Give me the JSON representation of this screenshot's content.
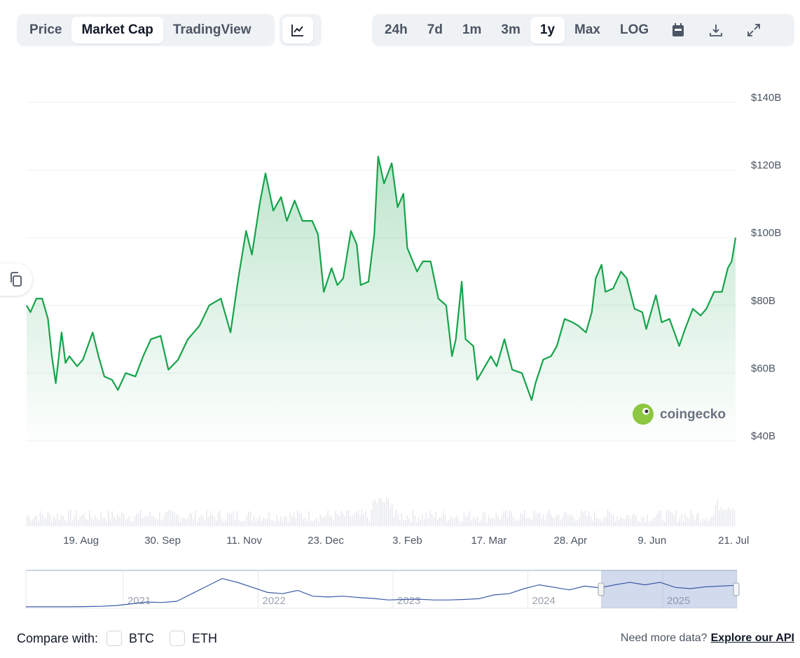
{
  "toolbar": {
    "tabs": [
      {
        "label": "Price",
        "active": false
      },
      {
        "label": "Market Cap",
        "active": true
      },
      {
        "label": "TradingView",
        "active": false
      }
    ],
    "chart_type_icon": "line-chart-icon",
    "ranges": [
      {
        "label": "24h"
      },
      {
        "label": "7d"
      },
      {
        "label": "1m"
      },
      {
        "label": "3m"
      },
      {
        "label": "1y",
        "active": true
      },
      {
        "label": "Max"
      },
      {
        "label": "LOG"
      }
    ],
    "icons": [
      "calendar-icon",
      "download-icon",
      "expand-icon"
    ]
  },
  "watermark": "coingecko",
  "chart_data": {
    "type": "area",
    "title": "",
    "xlabel": "",
    "ylabel": "",
    "line_color": "#16a34a",
    "y_ticks": [
      "$40B",
      "$60B",
      "$80B",
      "$100B",
      "$120B",
      "$140B"
    ],
    "ylim": [
      40,
      140
    ],
    "xlim": [
      "2024-07-22",
      "2025-07-22"
    ],
    "x_ticks": [
      {
        "date": "2024-08-19",
        "label": "19. Aug"
      },
      {
        "date": "2024-09-30",
        "label": "30. Sep"
      },
      {
        "date": "2024-11-11",
        "label": "11. Nov"
      },
      {
        "date": "2024-12-23",
        "label": "23. Dec"
      },
      {
        "date": "2025-02-03",
        "label": "3. Feb"
      },
      {
        "date": "2025-03-17",
        "label": "17. Mar"
      },
      {
        "date": "2025-04-28",
        "label": "28. Apr"
      },
      {
        "date": "2025-06-09",
        "label": "9. Jun"
      },
      {
        "date": "2025-07-21",
        "label": "21. Jul"
      }
    ],
    "grid": true,
    "series": [
      {
        "x": [
          "2024-07-22",
          "2024-07-24",
          "2024-07-27",
          "2024-07-30",
          "2024-08-02",
          "2024-08-04",
          "2024-08-06",
          "2024-08-09",
          "2024-08-11",
          "2024-08-13",
          "2024-08-17",
          "2024-08-20",
          "2024-08-25",
          "2024-08-28",
          "2024-08-31",
          "2024-09-04",
          "2024-09-07",
          "2024-09-11",
          "2024-09-16",
          "2024-09-20",
          "2024-09-24",
          "2024-09-29",
          "2024-10-03",
          "2024-10-08",
          "2024-10-13",
          "2024-10-19",
          "2024-10-24",
          "2024-10-30",
          "2024-11-04",
          "2024-11-08",
          "2024-11-12",
          "2024-11-15",
          "2024-11-19",
          "2024-11-22",
          "2024-11-26",
          "2024-11-30",
          "2024-12-03",
          "2024-12-07",
          "2024-12-11",
          "2024-12-16",
          "2024-12-19",
          "2024-12-22",
          "2024-12-26",
          "2024-12-29",
          "2025-01-01",
          "2025-01-05",
          "2025-01-08",
          "2025-01-10",
          "2025-01-14",
          "2025-01-17",
          "2025-01-19",
          "2025-01-22",
          "2025-01-26",
          "2025-01-29",
          "2025-02-01",
          "2025-02-03",
          "2025-02-08",
          "2025-02-11",
          "2025-02-15",
          "2025-02-19",
          "2025-02-23",
          "2025-02-26",
          "2025-02-28",
          "2025-03-03",
          "2025-03-05",
          "2025-03-09",
          "2025-03-11",
          "2025-03-14",
          "2025-03-18",
          "2025-03-21",
          "2025-03-25",
          "2025-03-29",
          "2025-04-03",
          "2025-04-08",
          "2025-04-10",
          "2025-04-14",
          "2025-04-18",
          "2025-04-21",
          "2025-04-25",
          "2025-04-29",
          "2025-05-02",
          "2025-05-06",
          "2025-05-09",
          "2025-05-11",
          "2025-05-14",
          "2025-05-16",
          "2025-05-20",
          "2025-05-24",
          "2025-05-27",
          "2025-05-31",
          "2025-06-04",
          "2025-06-06",
          "2025-06-11",
          "2025-06-14",
          "2025-06-18",
          "2025-06-23",
          "2025-06-26",
          "2025-06-30",
          "2025-07-04",
          "2025-07-07",
          "2025-07-11",
          "2025-07-15",
          "2025-07-18",
          "2025-07-20",
          "2025-07-22"
        ],
        "y": [
          80,
          78,
          82,
          82,
          76,
          65,
          57,
          72,
          63,
          65,
          62,
          64,
          72,
          65,
          59,
          58,
          55,
          60,
          59,
          65,
          70,
          71,
          61,
          64,
          70,
          74,
          80,
          82,
          72,
          88,
          102,
          95,
          110,
          119,
          108,
          112,
          105,
          111,
          105,
          105,
          101,
          84,
          91,
          86,
          88,
          102,
          98,
          86,
          87,
          101,
          124,
          116,
          122,
          109,
          113,
          97,
          90,
          93,
          93,
          82,
          80,
          65,
          70,
          87,
          70,
          68,
          58,
          61,
          65,
          62,
          70,
          61,
          60,
          52,
          57,
          64,
          65,
          68,
          76,
          75,
          74,
          72,
          78,
          88,
          92,
          84,
          85,
          90,
          88,
          79,
          78,
          73,
          83,
          75,
          76,
          68,
          73,
          79,
          77,
          79,
          84,
          84,
          91,
          93,
          100
        ]
      }
    ]
  },
  "navigator": {
    "year_labels": [
      "2021",
      "2022",
      "2023",
      "2024",
      "2025"
    ],
    "series": [
      3,
      3,
      3,
      3,
      4,
      5,
      8,
      15,
      22,
      20,
      25,
      55,
      85,
      115,
      100,
      80,
      60,
      55,
      68,
      45,
      42,
      45,
      40,
      36,
      30,
      32,
      33,
      30,
      30,
      32,
      35,
      50,
      55,
      75,
      90,
      80,
      70,
      85,
      78,
      90,
      100,
      90,
      100,
      80,
      75,
      82,
      85,
      88
    ]
  },
  "footer": {
    "compare_label": "Compare with:",
    "compare_options": [
      {
        "label": "BTC",
        "checked": false
      },
      {
        "label": "ETH",
        "checked": false
      }
    ],
    "need_more": "Need more data?",
    "api_link": "Explore our API"
  }
}
